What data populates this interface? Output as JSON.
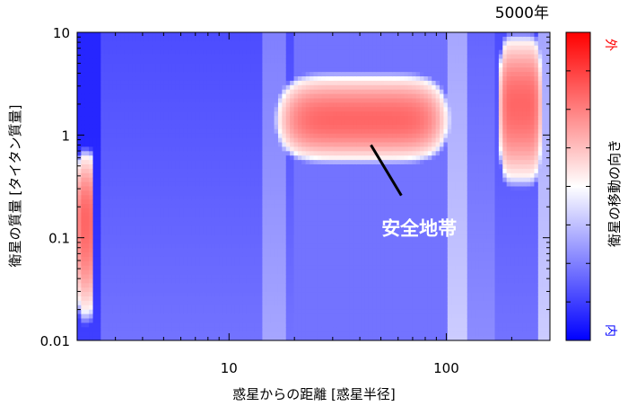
{
  "chart_data": {
    "type": "heatmap",
    "title": "5000年",
    "xlabel": "惑星からの距離 [惑星半径]",
    "ylabel": "衛星の質量 [タイタン質量]",
    "x_scale": "log",
    "y_scale": "log",
    "xlim": [
      2,
      300
    ],
    "ylim": [
      0.01,
      10
    ],
    "x_ticks": [
      {
        "value": 10,
        "label": "10"
      },
      {
        "value": 100,
        "label": "100"
      }
    ],
    "y_ticks": [
      {
        "value": 10,
        "label": "10"
      },
      {
        "value": 1,
        "label": "1"
      },
      {
        "value": 0.1,
        "label": "0.1"
      },
      {
        "value": 0.01,
        "label": "0.01"
      }
    ],
    "colorbar": {
      "label": "衛星の移動の向き",
      "top_label": "外",
      "bottom_label": "内",
      "top_color": "#ff0000",
      "mid_color": "#ffffff",
      "bottom_color": "#0000ff",
      "tick_fractions": [
        0.125,
        0.25,
        0.375,
        0.5,
        0.625,
        0.75,
        0.875
      ]
    },
    "regions": [
      {
        "direction": "外",
        "x_range": [
          2.0,
          2.4
        ],
        "y_range": [
          0.02,
          0.6
        ],
        "peak_y": 0.15
      },
      {
        "direction": "外",
        "x_range": [
          17,
          100
        ],
        "y_range": [
          0.6,
          3.5
        ],
        "peak_y": 1.4
      },
      {
        "direction": "外",
        "x_range": [
          175,
          275
        ],
        "y_range": [
          0.4,
          8
        ],
        "peak_y": 2
      }
    ],
    "annotations": [
      {
        "text": "安全地帯",
        "x": 45,
        "y": 0.8,
        "text_x": 75,
        "text_y": 0.12
      }
    ]
  }
}
